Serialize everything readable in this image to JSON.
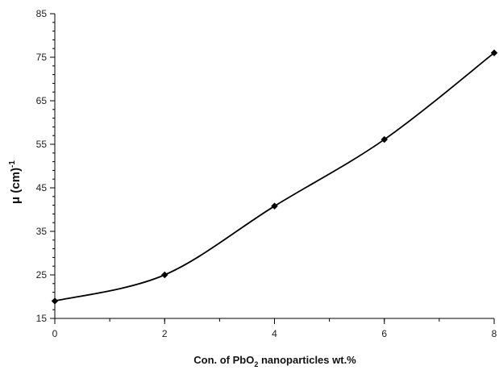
{
  "chart_data": {
    "type": "line",
    "title": "",
    "xlabel": {
      "text": "Con. of PbO",
      "subscript": "2",
      "suffix": " nanoparticles wt.%"
    },
    "ylabel": {
      "text": "μ (cm)",
      "superscript": "-1"
    },
    "xlim": [
      0,
      8
    ],
    "ylim": [
      15,
      85
    ],
    "xticks": [
      0,
      2,
      4,
      6,
      8
    ],
    "xtick_labels": [
      "0",
      "2",
      "4",
      "6",
      "8"
    ],
    "xminor_step": 1,
    "yticks": [
      15,
      25,
      35,
      45,
      55,
      65,
      75,
      85
    ],
    "ytick_labels": [
      "15",
      "25",
      "35",
      "45",
      "55",
      "65",
      "75",
      "85"
    ],
    "yminor_step": 2,
    "grid": false,
    "legend": "none",
    "smooth": true,
    "marker": "diamond",
    "series": [
      {
        "x": [
          0,
          2,
          4,
          6,
          8
        ],
        "y": [
          19,
          25,
          40.8,
          56.1,
          76
        ],
        "color": "#000000"
      }
    ]
  }
}
